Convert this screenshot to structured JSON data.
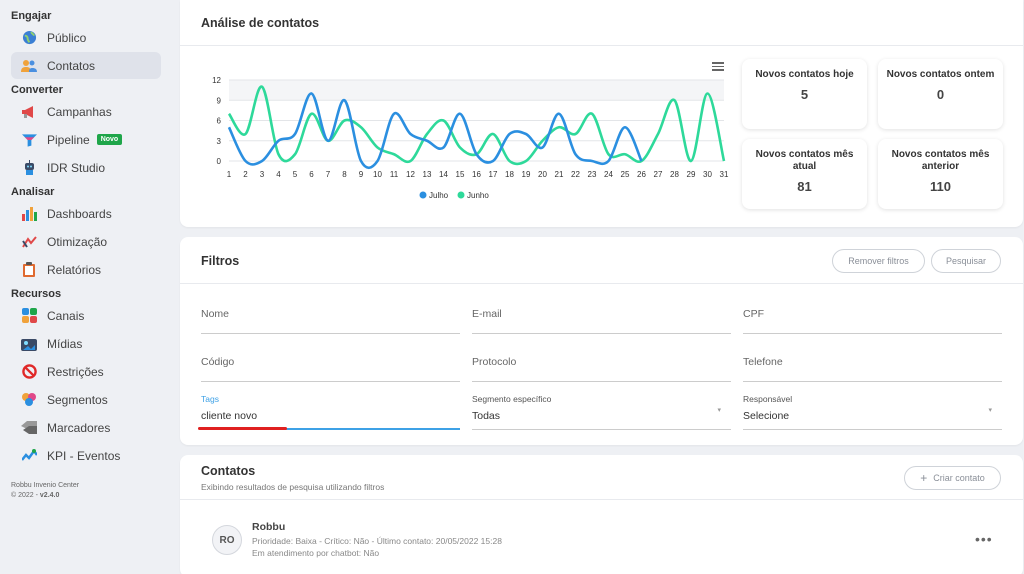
{
  "sidebar": {
    "sections": [
      {
        "title": "Engajar",
        "items": [
          {
            "label": "Público",
            "icon": "globe-icon"
          },
          {
            "label": "Contatos",
            "icon": "contacts-icon",
            "active": true
          }
        ]
      },
      {
        "title": "Converter",
        "items": [
          {
            "label": "Campanhas",
            "icon": "megaphone-icon"
          },
          {
            "label": "Pipeline",
            "icon": "funnel-icon",
            "badge": "Novo"
          },
          {
            "label": "IDR Studio",
            "icon": "robot-icon"
          }
        ]
      },
      {
        "title": "Analisar",
        "items": [
          {
            "label": "Dashboards",
            "icon": "bar-chart-icon"
          },
          {
            "label": "Otimização",
            "icon": "optimization-icon"
          },
          {
            "label": "Relatórios",
            "icon": "clipboard-icon"
          }
        ]
      },
      {
        "title": "Recursos",
        "items": [
          {
            "label": "Canais",
            "icon": "channels-icon"
          },
          {
            "label": "Mídias",
            "icon": "media-icon"
          },
          {
            "label": "Restrições",
            "icon": "restriction-icon"
          },
          {
            "label": "Segmentos",
            "icon": "segments-icon"
          },
          {
            "label": "Marcadores",
            "icon": "tag-icon"
          },
          {
            "label": "KPI - Eventos",
            "icon": "kpi-icon"
          }
        ]
      }
    ],
    "footer": {
      "line1": "Robbu Invenio Center",
      "line2": "© 2022 - ",
      "version": "v2.4.0"
    }
  },
  "analysis": {
    "title": "Análise de contatos",
    "stats": [
      {
        "label": "Novos contatos hoje",
        "value": "5"
      },
      {
        "label": "Novos contatos ontem",
        "value": "0"
      },
      {
        "label": "Novos contatos mês atual",
        "value": "81"
      },
      {
        "label": "Novos contatos mês anterior",
        "value": "110"
      }
    ]
  },
  "chart_data": {
    "type": "line",
    "x": [
      1,
      2,
      3,
      4,
      5,
      6,
      7,
      8,
      9,
      10,
      11,
      12,
      13,
      14,
      15,
      16,
      17,
      18,
      19,
      20,
      21,
      22,
      23,
      24,
      25,
      26,
      27,
      28,
      29,
      30,
      31
    ],
    "yticks": [
      0,
      3,
      6,
      9,
      12
    ],
    "ylim": [
      0,
      12
    ],
    "series": [
      {
        "name": "Julho",
        "color": "#2b8fe0",
        "values": [
          5,
          0,
          0,
          3,
          4,
          10,
          3,
          9,
          0,
          0,
          7,
          4,
          3,
          2,
          7,
          1,
          0,
          4,
          4,
          2,
          7,
          1,
          0,
          0,
          5,
          0,
          null,
          null,
          null,
          null,
          null
        ]
      },
      {
        "name": "Junho",
        "color": "#2ed99a",
        "values": [
          7,
          4,
          11,
          1,
          1,
          7,
          3,
          6,
          5,
          2,
          1,
          0,
          4,
          6,
          2,
          1,
          4,
          0,
          0,
          3,
          5,
          4,
          7,
          1,
          1,
          0,
          4,
          9,
          0,
          10,
          0
        ]
      }
    ],
    "legend": "bottom"
  },
  "filters": {
    "title": "Filtros",
    "remove_label": "Remover filtros",
    "search_label": "Pesquisar",
    "fields": {
      "nome": "Nome",
      "email": "E-mail",
      "cpf": "CPF",
      "codigo": "Código",
      "protocolo": "Protocolo",
      "telefone": "Telefone",
      "tags_label": "Tags",
      "tags_value": "cliente novo",
      "segmento_label": "Segmento específico",
      "segmento_value": "Todas",
      "responsavel_label": "Responsável",
      "responsavel_value": "Selecione"
    }
  },
  "contacts": {
    "title": "Contatos",
    "subtitle": "Exibindo resultados de pesquisa utilizando filtros",
    "create_label": "Criar contato",
    "items": [
      {
        "initials": "RO",
        "name": "Robbu",
        "details": "Prioridade: Baixa  - Crítico: Não  - Último contato: 20/05/2022 15:28",
        "status": "Em atendimento por chatbot: Não"
      }
    ]
  }
}
